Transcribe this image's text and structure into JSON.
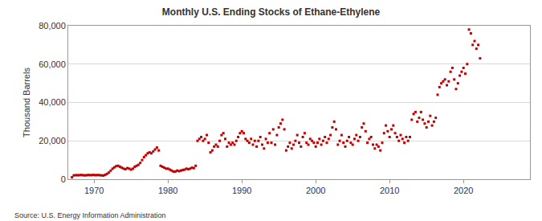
{
  "chart_data": {
    "type": "scatter",
    "title": "Monthly U.S. Ending Stocks of Ethane-Ethylene",
    "y_label": "Thousand Barrels",
    "source": "Source: U.S. Energy Information Administration",
    "marker": "square",
    "grid": true,
    "xlim": [
      1966.5,
      2029
    ],
    "xticks": [
      1970,
      1980,
      1990,
      2000,
      2010,
      2020
    ],
    "ylim": [
      0,
      80000
    ],
    "yticks": [
      0,
      {
        "value": 20000,
        "label": "20,000"
      },
      {
        "value": 40000,
        "label": "40,000"
      },
      {
        "value": 60000,
        "label": "60,000"
      },
      {
        "value": 80000,
        "label": "80,000"
      }
    ],
    "series": [
      {
        "name": "Ethane-Ethylene",
        "color": "#c00000",
        "x": [
          1967,
          1967.25,
          1967.5,
          1967.75,
          1968,
          1968.25,
          1968.5,
          1968.75,
          1969,
          1969.25,
          1969.5,
          1969.75,
          1970,
          1970.25,
          1970.5,
          1970.75,
          1971,
          1971.25,
          1971.5,
          1971.75,
          1972,
          1972.25,
          1972.5,
          1972.75,
          1973,
          1973.25,
          1973.5,
          1973.75,
          1974,
          1974.25,
          1974.5,
          1974.75,
          1975,
          1975.25,
          1975.5,
          1975.75,
          1976,
          1976.25,
          1976.5,
          1976.75,
          1977,
          1977.25,
          1977.5,
          1977.75,
          1978,
          1978.25,
          1978.5,
          1978.75,
          1979,
          1979.25,
          1979.5,
          1979.75,
          1980,
          1980.25,
          1980.5,
          1980.75,
          1981,
          1981.25,
          1981.5,
          1981.75,
          1982,
          1982.25,
          1982.5,
          1982.75,
          1983,
          1983.25,
          1983.5,
          1983.75,
          1984,
          1984.25,
          1984.5,
          1984.75,
          1985,
          1985.25,
          1985.5,
          1985.75,
          1986,
          1986.25,
          1986.5,
          1986.75,
          1987,
          1987.25,
          1987.5,
          1987.75,
          1988,
          1988.25,
          1988.5,
          1988.75,
          1989,
          1989.25,
          1989.5,
          1989.75,
          1990,
          1990.25,
          1990.5,
          1990.75,
          1991,
          1991.25,
          1991.5,
          1991.75,
          1992,
          1992.25,
          1992.5,
          1992.75,
          1993,
          1993.25,
          1993.5,
          1993.75,
          1994,
          1994.25,
          1994.5,
          1994.75,
          1995,
          1995.25,
          1995.5,
          1995.75,
          1996,
          1996.25,
          1996.5,
          1996.75,
          1997,
          1997.25,
          1997.5,
          1997.75,
          1998,
          1998.25,
          1998.5,
          1998.75,
          1999,
          1999.25,
          1999.5,
          1999.75,
          2000,
          2000.25,
          2000.5,
          2000.75,
          2001,
          2001.25,
          2001.5,
          2001.75,
          2002,
          2002.25,
          2002.5,
          2002.75,
          2003,
          2003.25,
          2003.5,
          2003.75,
          2004,
          2004.25,
          2004.5,
          2004.75,
          2005,
          2005.25,
          2005.5,
          2005.75,
          2006,
          2006.25,
          2006.5,
          2006.75,
          2007,
          2007.25,
          2007.5,
          2007.75,
          2008,
          2008.25,
          2008.5,
          2008.75,
          2009,
          2009.25,
          2009.5,
          2009.75,
          2010,
          2010.25,
          2010.5,
          2010.75,
          2011,
          2011.25,
          2011.5,
          2011.75,
          2012,
          2012.25,
          2012.5,
          2012.75,
          2013,
          2013.25,
          2013.5,
          2013.75,
          2014,
          2014.25,
          2014.5,
          2014.75,
          2015,
          2015.25,
          2015.5,
          2015.75,
          2016,
          2016.25,
          2016.5,
          2016.75,
          2017,
          2017.25,
          2017.5,
          2017.75,
          2018,
          2018.25,
          2018.5,
          2018.75,
          2019,
          2019.25,
          2019.5,
          2019.75,
          2020,
          2020.25,
          2020.5,
          2020.75,
          2021,
          2021.25,
          2021.5,
          2021.75,
          2022,
          2022.25
        ],
        "values": [
          1000,
          2000,
          2100,
          2100,
          2100,
          2200,
          2100,
          2000,
          2100,
          2200,
          2100,
          2200,
          2200,
          2100,
          2200,
          2100,
          2000,
          1900,
          2300,
          2800,
          3500,
          4500,
          5500,
          6200,
          6800,
          7000,
          6500,
          6000,
          5500,
          5200,
          5800,
          5500,
          5000,
          5500,
          6500,
          7000,
          7500,
          8500,
          10000,
          11500,
          12500,
          13500,
          14000,
          13500,
          14500,
          15500,
          16500,
          15000,
          7000,
          6500,
          6000,
          5500,
          5500,
          5000,
          4500,
          4000,
          4000,
          4500,
          4200,
          4500,
          4800,
          5000,
          5500,
          5200,
          5500,
          6000,
          5800,
          7000,
          20000,
          21000,
          22000,
          20000,
          21000,
          23000,
          19000,
          14000,
          15000,
          17000,
          18000,
          17000,
          20000,
          23000,
          24000,
          21000,
          17000,
          19000,
          18000,
          19000,
          18000,
          20000,
          22000,
          24000,
          25000,
          24000,
          21000,
          20000,
          19000,
          21000,
          18000,
          20000,
          17000,
          20000,
          22000,
          18000,
          16000,
          21000,
          19000,
          24000,
          19000,
          26000,
          18000,
          23000,
          27000,
          29000,
          31000,
          26000,
          15000,
          17000,
          19000,
          16000,
          18000,
          20000,
          23000,
          19000,
          17000,
          22000,
          24000,
          19000,
          18000,
          21000,
          20000,
          19000,
          17000,
          19000,
          21000,
          18000,
          20000,
          22000,
          19000,
          21000,
          23000,
          27000,
          30000,
          26000,
          18000,
          20000,
          23000,
          19000,
          17000,
          20000,
          22000,
          19000,
          18000,
          21000,
          23000,
          20000,
          22000,
          27000,
          29000,
          25000,
          19000,
          21000,
          22000,
          18000,
          16000,
          18000,
          17000,
          15000,
          19000,
          24000,
          28000,
          25000,
          22000,
          26000,
          28000,
          24000,
          22000,
          20000,
          23000,
          21000,
          19000,
          22000,
          20000,
          22000,
          31000,
          34000,
          35000,
          30000,
          32000,
          35000,
          31000,
          29000,
          27000,
          30000,
          33000,
          28000,
          30000,
          32000,
          44000,
          48000,
          50000,
          51000,
          52000,
          49000,
          51000,
          56000,
          58000,
          52000,
          47000,
          50000,
          54000,
          56000,
          58000,
          55000,
          60000,
          78000,
          76000,
          70000,
          72000,
          68000,
          70000,
          63000
        ]
      }
    ]
  }
}
